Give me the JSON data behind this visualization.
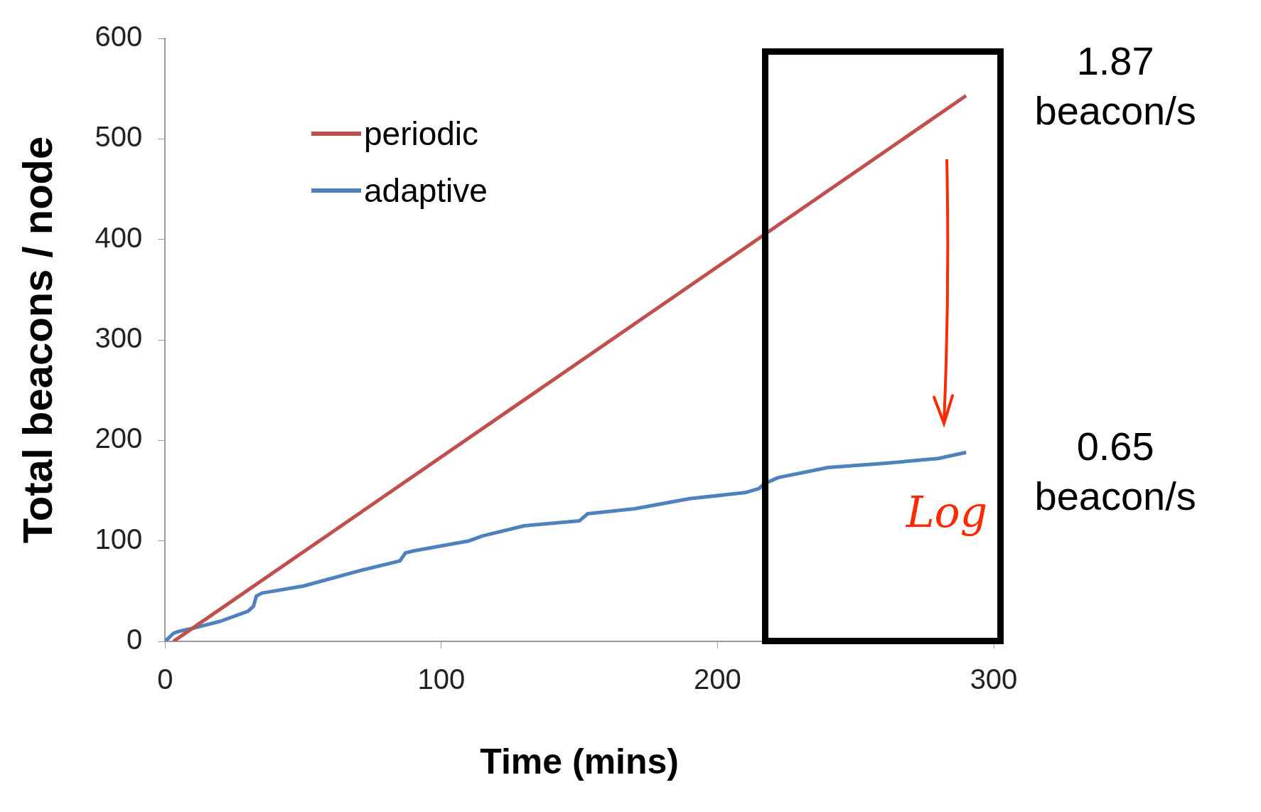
{
  "chart_data": {
    "type": "line",
    "xlabel": "Time (mins)",
    "ylabel": "Total beacons / node",
    "xlim": [
      0,
      300
    ],
    "xticks": [
      0,
      100,
      200,
      300
    ],
    "ylim": [
      0,
      600
    ],
    "yticks": [
      0,
      100,
      200,
      300,
      400,
      500,
      600
    ],
    "grid": false,
    "legend": "top left",
    "marker": "none",
    "line_style": "solid",
    "series": [
      {
        "name": "periodic",
        "color": "#c0504d",
        "x": [
          3,
          290
        ],
        "values": [
          0,
          543
        ]
      },
      {
        "name": "adaptive",
        "color": "#4f81bd",
        "x": [
          0,
          3,
          5,
          10,
          20,
          30,
          32,
          33,
          35,
          50,
          70,
          85,
          87,
          90,
          100,
          110,
          115,
          130,
          150,
          153,
          170,
          190,
          210,
          215,
          217,
          222,
          240,
          260,
          280,
          290
        ],
        "values": [
          0,
          8,
          10,
          13,
          20,
          30,
          35,
          45,
          48,
          55,
          70,
          80,
          88,
          90,
          95,
          100,
          105,
          115,
          120,
          127,
          132,
          142,
          148,
          152,
          157,
          163,
          173,
          177,
          182,
          188
        ]
      }
    ],
    "annotations": [
      {
        "text": "1.87 beacon/s",
        "x": 290,
        "y": 543
      },
      {
        "text": "0.65 beacon/s",
        "x": 290,
        "y": 188
      },
      "Log"
    ]
  }
}
